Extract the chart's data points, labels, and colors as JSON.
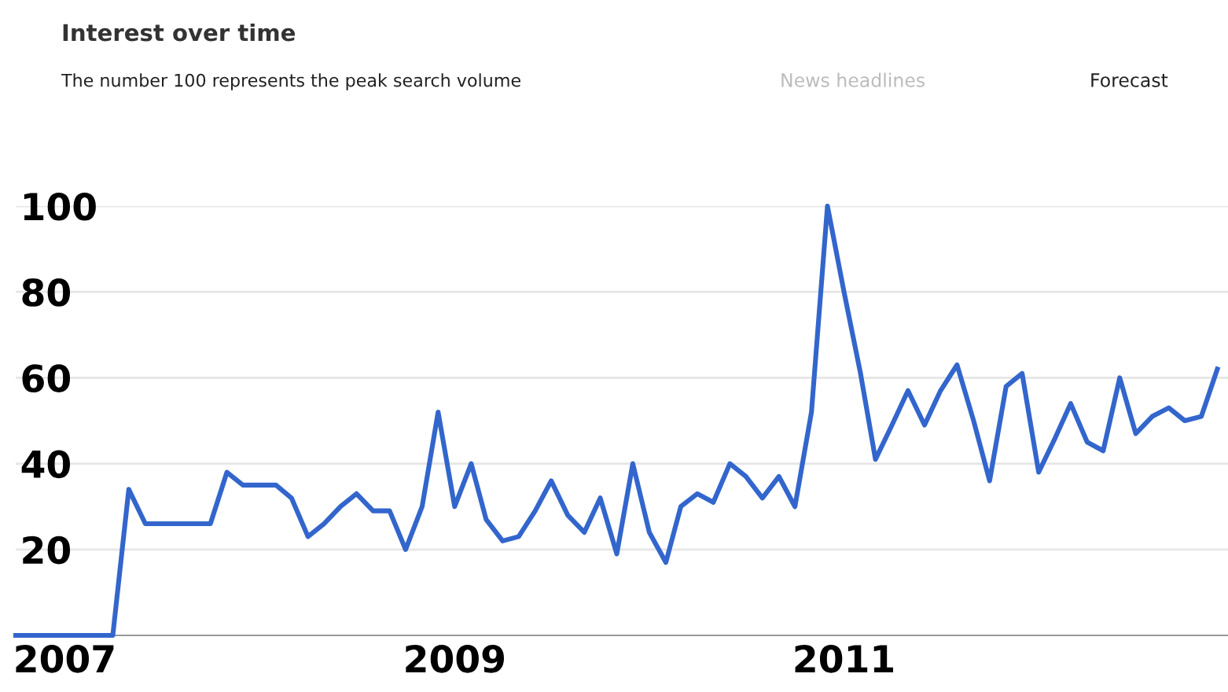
{
  "chart_data": {
    "type": "line",
    "title": "Interest over time",
    "subtitle": "The number 100 represents the peak search volume",
    "annotations": [
      "News headlines",
      "Forecast"
    ],
    "x": [
      "2006-10",
      "2006-11",
      "2006-12",
      "2007-01",
      "2007-02",
      "2007-03",
      "2007-04",
      "2007-05",
      "2007-06",
      "2007-07",
      "2007-08",
      "2007-09",
      "2007-10",
      "2007-11",
      "2007-12",
      "2008-01",
      "2008-02",
      "2008-03",
      "2008-04",
      "2008-05",
      "2008-06",
      "2008-07",
      "2008-08",
      "2008-09",
      "2008-10",
      "2008-11",
      "2008-12",
      "2009-01",
      "2009-02",
      "2009-03",
      "2009-04",
      "2009-05",
      "2009-06",
      "2009-07",
      "2009-08",
      "2009-09",
      "2009-10",
      "2009-11",
      "2009-12",
      "2010-01",
      "2010-02",
      "2010-03",
      "2010-04",
      "2010-05",
      "2010-06",
      "2010-07",
      "2010-08",
      "2010-09",
      "2010-10",
      "2010-11",
      "2010-12",
      "2011-01",
      "2011-02",
      "2011-03",
      "2011-04",
      "2011-05",
      "2011-06",
      "2011-07",
      "2011-08",
      "2011-09",
      "2011-10",
      "2011-11",
      "2011-12",
      "2012-01",
      "2012-02",
      "2012-03",
      "2012-04",
      "2012-05",
      "2012-06",
      "2012-07",
      "2012-08",
      "2012-09",
      "2012-10",
      "2012-11",
      "2012-12"
    ],
    "series": [
      {
        "color": "#3366cc",
        "values": [
          0,
          0,
          0,
          0,
          0,
          0,
          0,
          34,
          26,
          26,
          26,
          26,
          26,
          38,
          35,
          35,
          35,
          32,
          23,
          26,
          30,
          33,
          29,
          29,
          20,
          30,
          52,
          30,
          40,
          27,
          22,
          23,
          29,
          36,
          28,
          24,
          32,
          19,
          40,
          24,
          17,
          30,
          33,
          31,
          40,
          37,
          32,
          37,
          30,
          52,
          100,
          80,
          61,
          41,
          49,
          57,
          49,
          57,
          63,
          50,
          36,
          58,
          61,
          38,
          46,
          54,
          45,
          43,
          60,
          47,
          51,
          53,
          50,
          51,
          62
        ]
      }
    ],
    "xlim": [
      "2006-10",
      "2012-12-21"
    ],
    "xticks": [
      "2007",
      "2009",
      "2011"
    ],
    "ylim": [
      0,
      100
    ],
    "yticks": [
      20,
      40,
      60,
      80,
      100
    ],
    "grid": "y",
    "marker": "none",
    "line_style": "solid"
  }
}
